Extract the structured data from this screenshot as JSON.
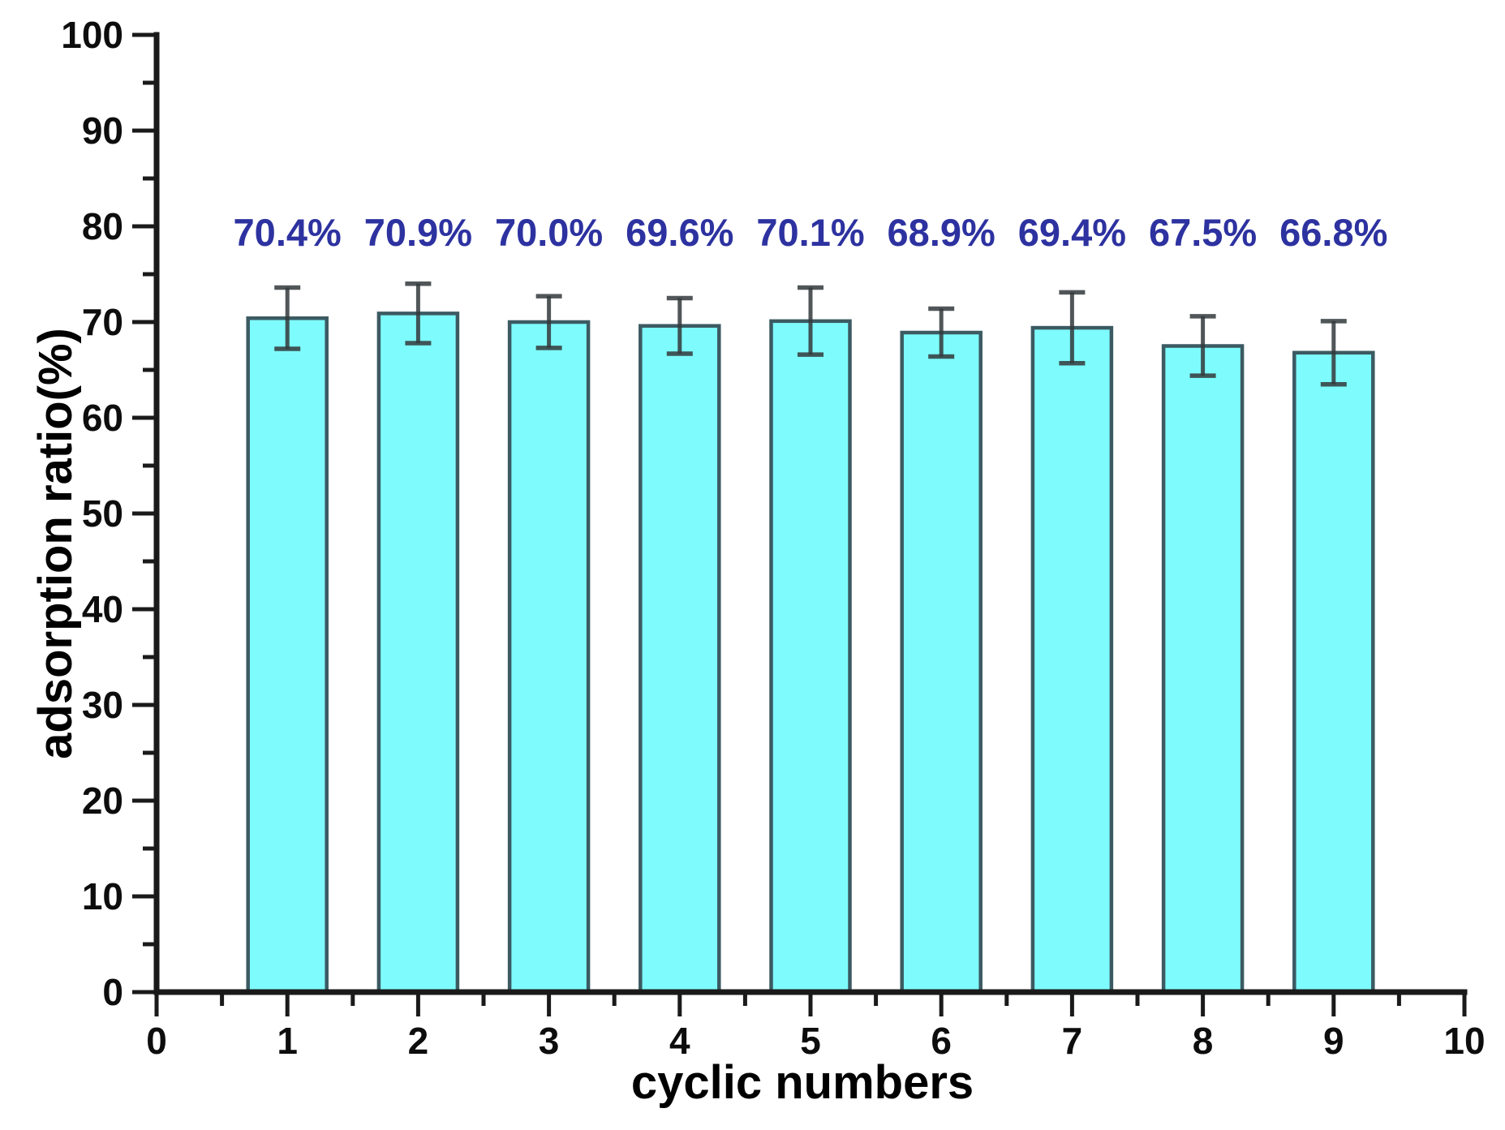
{
  "figure": {
    "background": "#ffffff"
  },
  "chart_data": {
    "type": "bar",
    "title": "",
    "xlabel": "cyclic numbers",
    "ylabel": "adsorption ratio(%)",
    "categories": [
      1,
      2,
      3,
      4,
      5,
      6,
      7,
      8,
      9
    ],
    "values": [
      70.4,
      70.9,
      70.0,
      69.6,
      70.1,
      68.9,
      69.4,
      67.5,
      66.8
    ],
    "bar_labels": [
      "70.4%",
      "70.9%",
      "70.0%",
      "69.6%",
      "70.1%",
      "68.9%",
      "69.4%",
      "67.5%",
      "66.8%"
    ],
    "error_bars": [
      3.2,
      3.1,
      2.7,
      2.9,
      3.5,
      2.5,
      3.7,
      3.1,
      3.3
    ],
    "xlim": [
      0,
      10
    ],
    "ylim": [
      0,
      100
    ],
    "x_major_ticks": [
      0,
      1,
      2,
      3,
      4,
      5,
      6,
      7,
      8,
      9,
      10
    ],
    "x_tick_labels": [
      "0",
      "1",
      "2",
      "3",
      "4",
      "5",
      "6",
      "7",
      "8",
      "9",
      "10"
    ],
    "x_minor_ticks": [
      0.5,
      1.5,
      2.5,
      3.5,
      4.5,
      5.5,
      6.5,
      7.5,
      8.5,
      9.5
    ],
    "y_major_ticks": [
      0,
      10,
      20,
      30,
      40,
      50,
      60,
      70,
      80,
      90,
      100
    ],
    "y_tick_labels": [
      "0",
      "10",
      "20",
      "30",
      "40",
      "50",
      "60",
      "70",
      "80",
      "90",
      "100"
    ],
    "y_minor_ticks": [
      5,
      15,
      25,
      35,
      45,
      55,
      65,
      75,
      85,
      95
    ],
    "grid": false,
    "legend": "none",
    "colors": {
      "bar_fill": "#7efbfc",
      "bar_border": "#3c5a62",
      "error_bar": "#33393b",
      "bar_label": "#2d32a0",
      "axis": "#1a1a1a"
    }
  }
}
